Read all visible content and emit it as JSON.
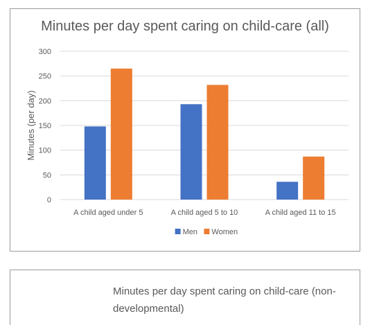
{
  "chart_data": [
    {
      "type": "bar",
      "title": "Minutes per day spent caring on child-care (all)",
      "ylabel": "Minutes (per day)",
      "xlabel": "",
      "categories": [
        "A child aged under 5",
        "A child aged 5 to 10",
        "A child aged 11 to 15"
      ],
      "series": [
        {
          "name": "Men",
          "values": [
            148,
            193,
            36
          ],
          "color": "#4472c4"
        },
        {
          "name": "Women",
          "values": [
            265,
            232,
            87
          ],
          "color": "#ed7d31"
        }
      ],
      "ylim": [
        0,
        300
      ],
      "yticks": [
        0,
        50,
        100,
        150,
        200,
        250,
        300
      ],
      "grid": true,
      "legend": "bottom-center"
    },
    {
      "type": "bar",
      "title": "Minutes per day spent caring on child-care (non-developmental)"
    }
  ]
}
